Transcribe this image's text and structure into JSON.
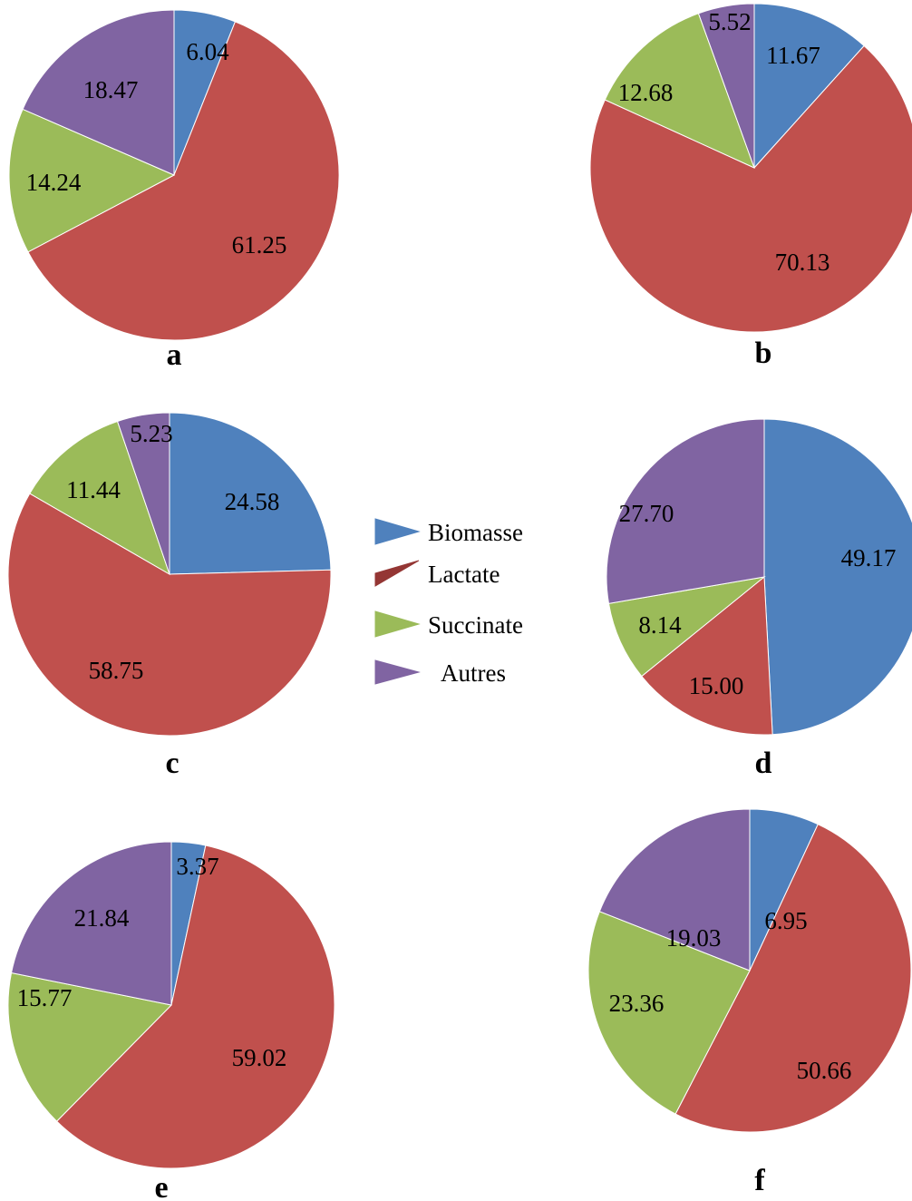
{
  "colors": {
    "Biomasse": "#4f81bd",
    "Lactate": "#c0504d",
    "Succinate": "#9bbb59",
    "Autres": "#8064a2"
  },
  "legend": {
    "items": [
      {
        "label": "Biomasse",
        "color": "#4f81bd"
      },
      {
        "label": "Lactate",
        "color": "#943634"
      },
      {
        "label": "Succinate",
        "color": "#9bbb59"
      },
      {
        "label": "Autres",
        "color": "#8064a2"
      }
    ]
  },
  "chart_data": [
    {
      "type": "pie",
      "label": "a",
      "categories": [
        "Biomasse",
        "Lactate",
        "Succinate",
        "Autres"
      ],
      "values": [
        6.04,
        61.25,
        14.24,
        18.47
      ],
      "value_labels": [
        "6.04",
        "61.25",
        "14.24",
        "18.47"
      ]
    },
    {
      "type": "pie",
      "label": "b",
      "categories": [
        "Biomasse",
        "Lactate",
        "Succinate",
        "Autres"
      ],
      "values": [
        11.67,
        70.13,
        12.68,
        5.52
      ],
      "value_labels": [
        "11.67",
        "70.13",
        "12.68",
        "5.52"
      ]
    },
    {
      "type": "pie",
      "label": "c",
      "categories": [
        "Biomasse",
        "Lactate",
        "Succinate",
        "Autres"
      ],
      "values": [
        24.58,
        58.75,
        11.44,
        5.23
      ],
      "value_labels": [
        "24.58",
        "58.75",
        "11.44",
        "5.23"
      ]
    },
    {
      "type": "pie",
      "label": "d",
      "categories": [
        "Biomasse",
        "Lactate",
        "Succinate",
        "Autres"
      ],
      "values": [
        49.17,
        15.0,
        8.14,
        27.7
      ],
      "value_labels": [
        "49.17",
        "15.00",
        "8.14",
        "27.70"
      ]
    },
    {
      "type": "pie",
      "label": "e",
      "categories": [
        "Biomasse",
        "Lactate",
        "Succinate",
        "Autres"
      ],
      "values": [
        3.37,
        59.02,
        15.77,
        21.84
      ],
      "value_labels": [
        "3.37",
        "59.02",
        "15.77",
        "21.84"
      ]
    },
    {
      "type": "pie",
      "label": "f",
      "categories": [
        "Biomasse",
        "Lactate",
        "Succinate",
        "Autres"
      ],
      "values": [
        6.95,
        50.66,
        23.36,
        19.03
      ],
      "value_labels": [
        "6.95",
        "50.66",
        "23.36",
        "19.03"
      ]
    }
  ]
}
